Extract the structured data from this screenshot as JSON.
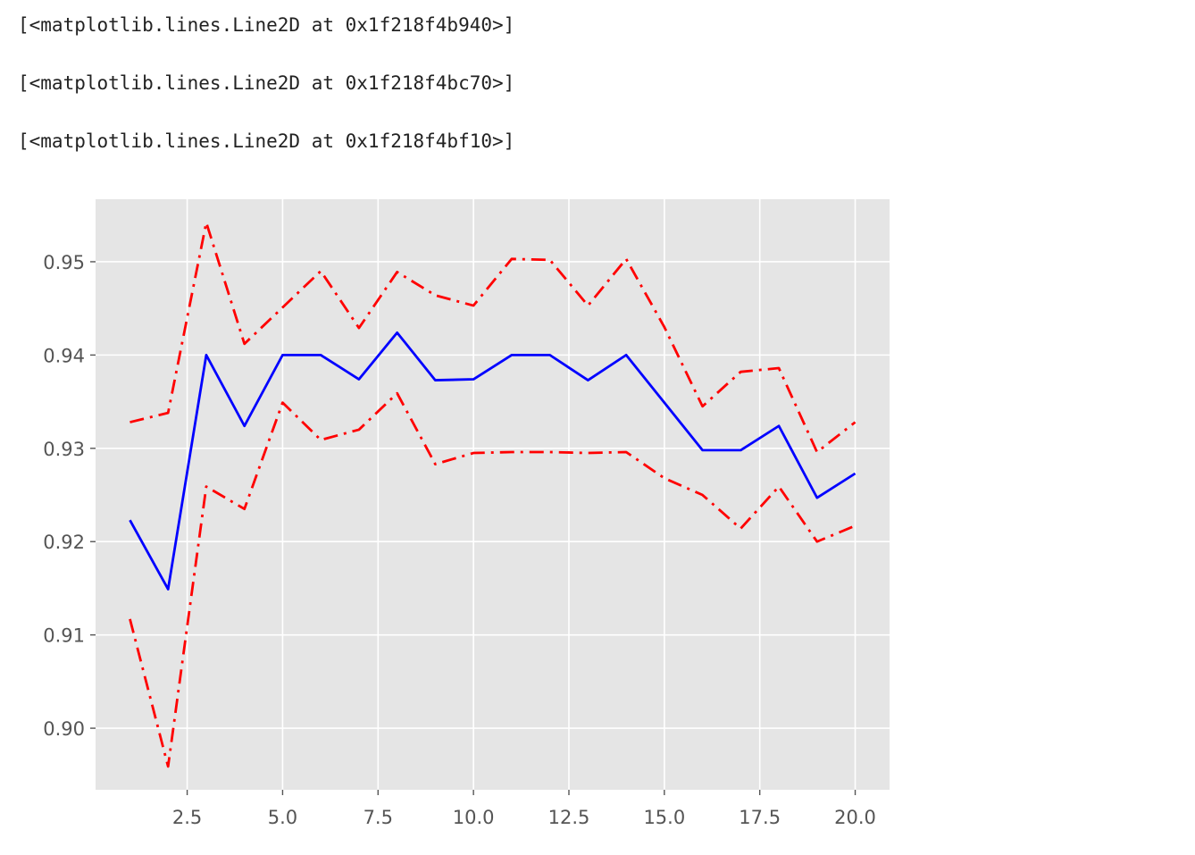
{
  "output_lines": [
    "[<matplotlib.lines.Line2D at 0x1f218f4b940>]",
    "[<matplotlib.lines.Line2D at 0x1f218f4bc70>]",
    "[<matplotlib.lines.Line2D at 0x1f218f4bf10>]"
  ],
  "chart_data": {
    "type": "line",
    "title": "",
    "xlabel": "",
    "ylabel": "",
    "xlim": [
      0.1,
      20.9
    ],
    "ylim": [
      0.8934,
      0.9567
    ],
    "grid": true,
    "background": "#e5e5e5",
    "x_ticks": [
      2.5,
      5.0,
      7.5,
      10.0,
      12.5,
      15.0,
      17.5,
      20.0
    ],
    "x_tick_labels": [
      "2.5",
      "5.0",
      "7.5",
      "10.0",
      "12.5",
      "15.0",
      "17.5",
      "20.0"
    ],
    "y_ticks": [
      0.9,
      0.91,
      0.92,
      0.93,
      0.94,
      0.95
    ],
    "y_tick_labels": [
      "0.90",
      "0.91",
      "0.92",
      "0.93",
      "0.94",
      "0.95"
    ],
    "x": [
      1,
      2,
      3,
      4,
      5,
      6,
      7,
      8,
      9,
      10,
      11,
      12,
      13,
      14,
      15,
      16,
      17,
      18,
      19,
      20
    ],
    "series": [
      {
        "color": "#0000ff",
        "style": "solid",
        "values": [
          0.9223,
          0.9149,
          0.94,
          0.9324,
          0.94,
          0.94,
          0.9374,
          0.9424,
          0.9373,
          0.9374,
          0.94,
          0.94,
          0.9373,
          0.94,
          0.9349,
          0.9298,
          0.9298,
          0.9324,
          0.9247,
          0.9273
        ]
      },
      {
        "color": "#ff0000",
        "style": "dashdot",
        "values": [
          0.9328,
          0.9338,
          0.9542,
          0.9412,
          0.9451,
          0.949,
          0.9429,
          0.9489,
          0.9464,
          0.9453,
          0.9503,
          0.9502,
          0.9453,
          0.9503,
          0.943,
          0.9345,
          0.9382,
          0.9386,
          0.9296,
          0.9328
        ]
      },
      {
        "color": "#ff0000",
        "style": "dashdot",
        "values": [
          0.9117,
          0.8959,
          0.9259,
          0.9235,
          0.9349,
          0.9309,
          0.932,
          0.9359,
          0.9283,
          0.9295,
          0.9296,
          0.9296,
          0.9295,
          0.9296,
          0.9268,
          0.925,
          0.9214,
          0.9259,
          0.92,
          0.9217
        ]
      }
    ]
  }
}
